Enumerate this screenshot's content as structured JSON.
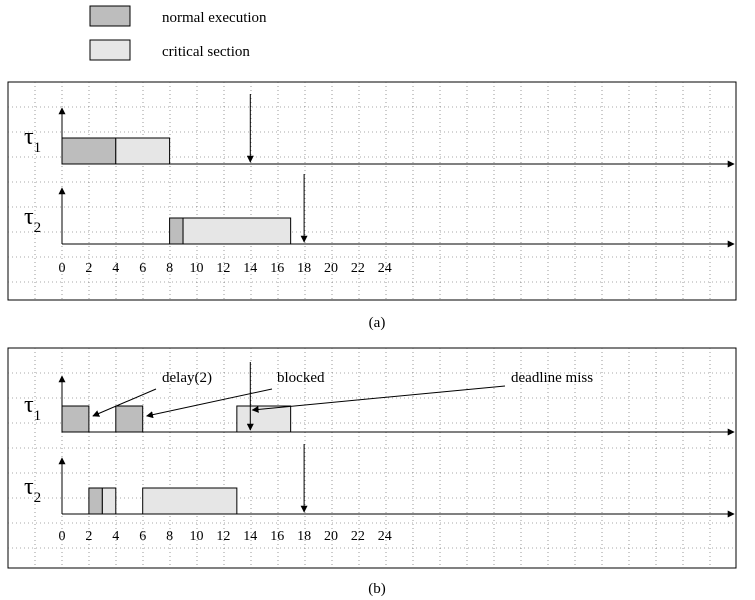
{
  "legend": [
    {
      "label": "normal execution",
      "color": "#bdbdbd"
    },
    {
      "label": "critical section",
      "color": "#e6e6e6"
    }
  ],
  "colors": {
    "normal": "#bdbdbd",
    "critical": "#e6e6e6",
    "grid": "#555555",
    "stroke": "#000000"
  },
  "ticks": [
    "0",
    "2",
    "4",
    "6",
    "8",
    "10",
    "12",
    "14",
    "16",
    "18",
    "20",
    "22",
    "24"
  ],
  "task_labels": {
    "t1": "τ",
    "t1_sub": "1",
    "t2": "τ",
    "t2_sub": "2"
  },
  "panels": [
    {
      "caption": "(a)",
      "tasks": [
        {
          "id": "t1",
          "blocks": [
            {
              "start": 0,
              "end": 4,
              "kind": "normal"
            },
            {
              "start": 4,
              "end": 8,
              "kind": "critical"
            }
          ],
          "deadline": 14
        },
        {
          "id": "t2",
          "blocks": [
            {
              "start": 8,
              "end": 9,
              "kind": "normal"
            },
            {
              "start": 9,
              "end": 17,
              "kind": "critical"
            }
          ],
          "deadline": 18
        }
      ],
      "annotations": []
    },
    {
      "caption": "(b)",
      "tasks": [
        {
          "id": "t1",
          "blocks": [
            {
              "start": 0,
              "end": 2,
              "kind": "normal"
            },
            {
              "start": 4,
              "end": 6,
              "kind": "normal"
            },
            {
              "start": 13,
              "end": 17,
              "kind": "critical"
            }
          ],
          "deadline": 14
        },
        {
          "id": "t2",
          "blocks": [
            {
              "start": 2,
              "end": 3,
              "kind": "normal"
            },
            {
              "start": 3,
              "end": 4,
              "kind": "critical"
            },
            {
              "start": 6,
              "end": 13,
              "kind": "critical"
            }
          ],
          "deadline": 18
        }
      ],
      "annotations": [
        {
          "text": "delay(2)",
          "time": 2
        },
        {
          "text": "blocked",
          "time": 6
        },
        {
          "text": "deadline miss",
          "time": 14
        }
      ]
    }
  ]
}
